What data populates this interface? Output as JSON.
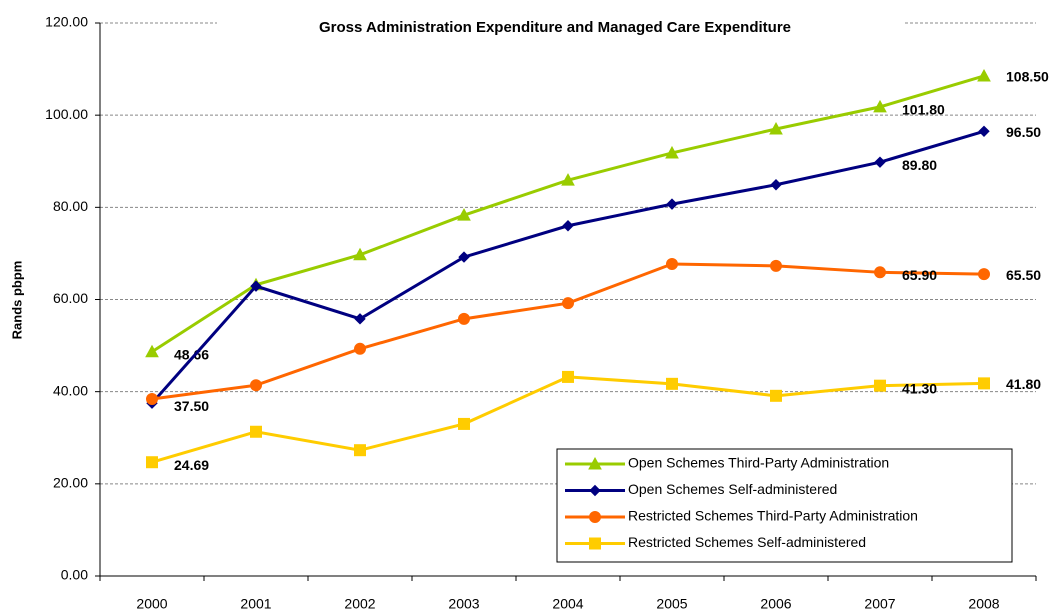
{
  "chart_data": {
    "type": "line",
    "title": "Gross Administration Expenditure and Managed Care Expenditure",
    "y_label": "Rands pbpm",
    "categories": [
      "2000",
      "2001",
      "2002",
      "2003",
      "2004",
      "2005",
      "2006",
      "2007",
      "2008"
    ],
    "ylim": [
      0,
      120
    ],
    "yticks": [
      {
        "value": 0,
        "label": "0.00"
      },
      {
        "value": 20,
        "label": "20.00"
      },
      {
        "value": 40,
        "label": "40.00"
      },
      {
        "value": 60,
        "label": "60.00"
      },
      {
        "value": 80,
        "label": "80.00"
      },
      {
        "value": 100,
        "label": "100.00"
      },
      {
        "value": 120,
        "label": "120.00"
      }
    ],
    "grid": true,
    "legend": "lower right",
    "series": [
      {
        "name": "Open Schemes Third-Party Administration",
        "color": "#99cc00",
        "marker": "triangle",
        "values": [
          48.66,
          63.2,
          69.7,
          78.3,
          85.9,
          91.8,
          97.0,
          101.8,
          108.5
        ],
        "value_labels": [
          "48.66",
          null,
          null,
          null,
          null,
          null,
          null,
          "101.80",
          "108.50"
        ]
      },
      {
        "name": "Open Schemes Self-administered",
        "color": "#000080",
        "marker": "diamond",
        "values": [
          37.5,
          62.9,
          55.8,
          69.2,
          76.0,
          80.7,
          84.9,
          89.8,
          96.5
        ],
        "value_labels": [
          "37.50",
          null,
          null,
          null,
          null,
          null,
          null,
          "89.80",
          "96.50"
        ]
      },
      {
        "name": "Restricted Schemes Third-Party Administration",
        "color": "#ff6600",
        "marker": "circle",
        "values": [
          38.4,
          41.4,
          49.3,
          55.8,
          59.2,
          67.7,
          67.3,
          65.9,
          65.5
        ],
        "value_labels": [
          null,
          null,
          null,
          null,
          null,
          null,
          null,
          "65.90",
          "65.50"
        ]
      },
      {
        "name": "Restricted Schemes Self-administered",
        "color": "#ffcc00",
        "marker": "square",
        "values": [
          24.69,
          31.3,
          27.3,
          33.0,
          43.2,
          41.7,
          39.1,
          41.3,
          41.8
        ],
        "value_labels": [
          "24.69",
          null,
          null,
          null,
          null,
          null,
          null,
          "41.30",
          "41.80"
        ]
      }
    ]
  }
}
